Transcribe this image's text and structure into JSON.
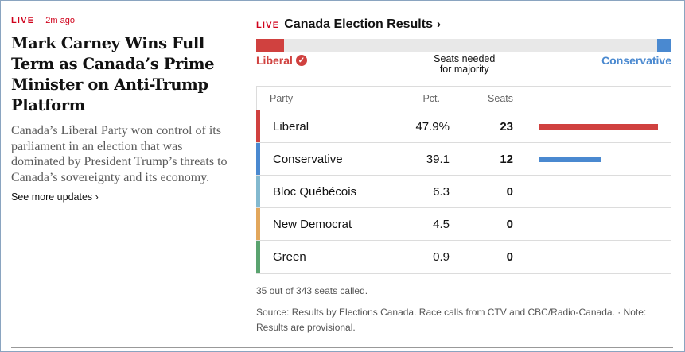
{
  "story": {
    "live_label": "LIVE",
    "timestamp": "2m ago",
    "headline": "Mark Carney Wins Full Term as Canada’s Prime Minister on Anti-Trump Platform",
    "summary": "Canada’s Liberal Party won control of its parliament in an election that was dominated by President Trump’s threats to Canada’s sovereignty and its economy.",
    "more_link": "See more updates ›"
  },
  "results": {
    "live_label": "LIVE",
    "title": "Canada Election Results",
    "title_chevron": "›",
    "total_seats": 343,
    "majority_seats": 172,
    "liberal_label": "Liberal",
    "liberal_check": "✓",
    "conservative_label": "Conservative",
    "majority_label_line1": "Seats needed",
    "majority_label_line2": "for majority",
    "columns": {
      "party": "Party",
      "pct": "Pct.",
      "seats": "Seats"
    },
    "parties": [
      {
        "name": "Liberal",
        "pct": "47.9%",
        "seats": "23",
        "seat_count": 23,
        "color": "#d0413f"
      },
      {
        "name": "Conservative",
        "pct": "39.1",
        "seats": "12",
        "seat_count": 12,
        "color": "#4a89d0"
      },
      {
        "name": "Bloc Québécois",
        "pct": "6.3",
        "seats": "0",
        "seat_count": 0,
        "color": "#83b9cf"
      },
      {
        "name": "New Democrat",
        "pct": "4.5",
        "seats": "0",
        "seat_count": 0,
        "color": "#e2a75c"
      },
      {
        "name": "Green",
        "pct": "0.9",
        "seats": "0",
        "seat_count": 0,
        "color": "#5aa36f"
      }
    ],
    "called_text": "35 out of 343 seats called.",
    "source_text": "Source: Results by Elections Canada. Race calls from CTV and CBC/Radio-Canada.  ·  Note: Results are provisional."
  }
}
